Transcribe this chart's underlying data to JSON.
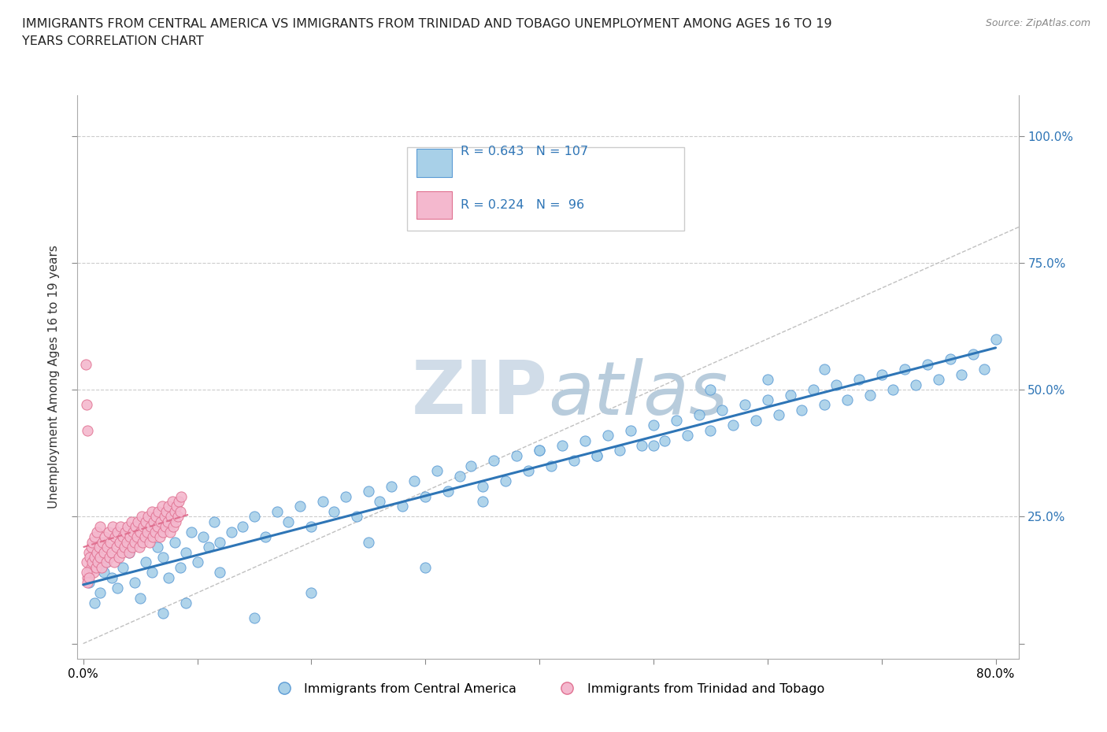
{
  "title": "IMMIGRANTS FROM CENTRAL AMERICA VS IMMIGRANTS FROM TRINIDAD AND TOBAGO UNEMPLOYMENT AMONG AGES 16 TO 19\nYEARS CORRELATION CHART",
  "source": "Source: ZipAtlas.com",
  "ylabel": "Unemployment Among Ages 16 to 19 years",
  "xlim": [
    -0.005,
    0.82
  ],
  "ylim": [
    -0.03,
    1.08
  ],
  "blue_color": "#A8D0E8",
  "blue_edge_color": "#5B9BD5",
  "pink_color": "#F4B8CE",
  "pink_edge_color": "#E07090",
  "blue_line_color": "#2E75B6",
  "pink_line_color": "#E07090",
  "blue_label": "Immigrants from Central America",
  "pink_label": "Immigrants from Trinidad and Tobago",
  "watermark_color": "#D0DCE8",
  "blue_R": 0.643,
  "blue_N": 107,
  "pink_R": 0.224,
  "pink_N": 96,
  "blue_x": [
    0.005,
    0.01,
    0.015,
    0.018,
    0.02,
    0.025,
    0.03,
    0.035,
    0.04,
    0.045,
    0.05,
    0.055,
    0.06,
    0.065,
    0.07,
    0.075,
    0.08,
    0.085,
    0.09,
    0.095,
    0.1,
    0.105,
    0.11,
    0.115,
    0.12,
    0.13,
    0.14,
    0.15,
    0.16,
    0.17,
    0.18,
    0.19,
    0.2,
    0.21,
    0.22,
    0.23,
    0.24,
    0.25,
    0.26,
    0.27,
    0.28,
    0.29,
    0.3,
    0.31,
    0.32,
    0.33,
    0.34,
    0.35,
    0.36,
    0.37,
    0.38,
    0.39,
    0.4,
    0.41,
    0.42,
    0.43,
    0.44,
    0.45,
    0.46,
    0.47,
    0.48,
    0.49,
    0.5,
    0.51,
    0.52,
    0.53,
    0.54,
    0.55,
    0.56,
    0.57,
    0.58,
    0.59,
    0.6,
    0.61,
    0.62,
    0.63,
    0.64,
    0.65,
    0.66,
    0.67,
    0.68,
    0.69,
    0.7,
    0.71,
    0.72,
    0.73,
    0.74,
    0.75,
    0.76,
    0.77,
    0.78,
    0.79,
    0.8,
    0.55,
    0.6,
    0.65,
    0.4,
    0.45,
    0.5,
    0.35,
    0.3,
    0.25,
    0.2,
    0.15,
    0.12,
    0.09,
    0.07
  ],
  "blue_y": [
    0.12,
    0.08,
    0.1,
    0.14,
    0.16,
    0.13,
    0.11,
    0.15,
    0.18,
    0.12,
    0.09,
    0.16,
    0.14,
    0.19,
    0.17,
    0.13,
    0.2,
    0.15,
    0.18,
    0.22,
    0.16,
    0.21,
    0.19,
    0.24,
    0.2,
    0.22,
    0.23,
    0.25,
    0.21,
    0.26,
    0.24,
    0.27,
    0.23,
    0.28,
    0.26,
    0.29,
    0.25,
    0.3,
    0.28,
    0.31,
    0.27,
    0.32,
    0.29,
    0.34,
    0.3,
    0.33,
    0.35,
    0.31,
    0.36,
    0.32,
    0.37,
    0.34,
    0.38,
    0.35,
    0.39,
    0.36,
    0.4,
    0.37,
    0.41,
    0.38,
    0.42,
    0.39,
    0.43,
    0.4,
    0.44,
    0.41,
    0.45,
    0.42,
    0.46,
    0.43,
    0.47,
    0.44,
    0.48,
    0.45,
    0.49,
    0.46,
    0.5,
    0.47,
    0.51,
    0.48,
    0.52,
    0.49,
    0.53,
    0.5,
    0.54,
    0.51,
    0.55,
    0.52,
    0.56,
    0.53,
    0.57,
    0.54,
    0.6,
    0.5,
    0.52,
    0.54,
    0.38,
    0.37,
    0.39,
    0.28,
    0.15,
    0.2,
    0.1,
    0.05,
    0.14,
    0.08,
    0.06
  ],
  "pink_x": [
    0.003,
    0.004,
    0.005,
    0.005,
    0.006,
    0.007,
    0.007,
    0.008,
    0.008,
    0.009,
    0.01,
    0.01,
    0.011,
    0.012,
    0.012,
    0.013,
    0.014,
    0.015,
    0.015,
    0.016,
    0.017,
    0.018,
    0.019,
    0.02,
    0.021,
    0.022,
    0.023,
    0.024,
    0.025,
    0.026,
    0.027,
    0.028,
    0.029,
    0.03,
    0.031,
    0.032,
    0.033,
    0.034,
    0.035,
    0.036,
    0.037,
    0.038,
    0.039,
    0.04,
    0.041,
    0.042,
    0.043,
    0.044,
    0.045,
    0.046,
    0.047,
    0.048,
    0.049,
    0.05,
    0.051,
    0.052,
    0.053,
    0.054,
    0.055,
    0.056,
    0.057,
    0.058,
    0.059,
    0.06,
    0.061,
    0.062,
    0.063,
    0.064,
    0.065,
    0.066,
    0.067,
    0.068,
    0.069,
    0.07,
    0.071,
    0.072,
    0.073,
    0.074,
    0.075,
    0.076,
    0.077,
    0.078,
    0.079,
    0.08,
    0.081,
    0.082,
    0.083,
    0.084,
    0.085,
    0.086,
    0.002,
    0.003,
    0.003,
    0.004,
    0.004,
    0.005
  ],
  "pink_y": [
    0.16,
    0.13,
    0.18,
    0.14,
    0.17,
    0.15,
    0.19,
    0.16,
    0.2,
    0.14,
    0.17,
    0.21,
    0.15,
    0.18,
    0.22,
    0.16,
    0.19,
    0.17,
    0.23,
    0.15,
    0.2,
    0.18,
    0.21,
    0.16,
    0.19,
    0.22,
    0.17,
    0.2,
    0.18,
    0.23,
    0.16,
    0.21,
    0.19,
    0.22,
    0.17,
    0.2,
    0.23,
    0.18,
    0.21,
    0.19,
    0.22,
    0.2,
    0.23,
    0.18,
    0.21,
    0.24,
    0.19,
    0.22,
    0.2,
    0.23,
    0.21,
    0.24,
    0.19,
    0.22,
    0.25,
    0.2,
    0.23,
    0.21,
    0.24,
    0.22,
    0.25,
    0.2,
    0.23,
    0.26,
    0.21,
    0.24,
    0.22,
    0.25,
    0.23,
    0.26,
    0.21,
    0.24,
    0.27,
    0.22,
    0.25,
    0.23,
    0.26,
    0.24,
    0.27,
    0.22,
    0.25,
    0.28,
    0.23,
    0.26,
    0.24,
    0.27,
    0.25,
    0.28,
    0.26,
    0.29,
    0.55,
    0.47,
    0.14,
    0.42,
    0.12,
    0.13
  ]
}
